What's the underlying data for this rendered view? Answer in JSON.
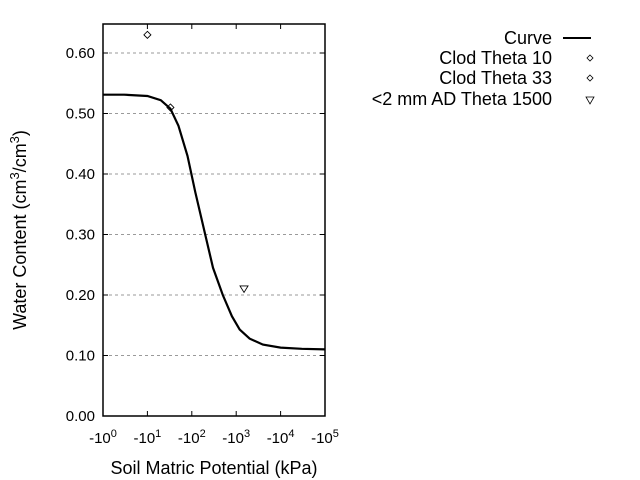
{
  "chart_data": {
    "type": "line",
    "title": "",
    "xlabel": "Soil Matric Potential (kPa)",
    "ylabel": "Water Content (cm3/cm3)",
    "ylabel_parts": {
      "pre": "Water Content (cm",
      "sup1": "3",
      "mid": "/cm",
      "sup2": "3",
      "post": ")"
    },
    "x_scale": "log (negative)",
    "x_ticks": [
      {
        "base": "-10",
        "exp": "0"
      },
      {
        "base": "-10",
        "exp": "1"
      },
      {
        "base": "-10",
        "exp": "2"
      },
      {
        "base": "-10",
        "exp": "3"
      },
      {
        "base": "-10",
        "exp": "4"
      },
      {
        "base": "-10",
        "exp": "5"
      }
    ],
    "xlim": [
      -1,
      -100000
    ],
    "y_ticks": [
      "0.00",
      "0.10",
      "0.20",
      "0.30",
      "0.40",
      "0.50",
      "0.60"
    ],
    "ylim": [
      0.0,
      0.65
    ],
    "grid": {
      "y": true,
      "x": false,
      "style": "dotted"
    },
    "legend_position": "upper right, outside plot",
    "series": [
      {
        "name": "Curve",
        "kind": "line",
        "x": [
          -1,
          -3,
          -10,
          -20,
          -33,
          -50,
          -80,
          -120,
          -200,
          -300,
          -500,
          -800,
          -1200,
          -2000,
          -4000,
          -10000,
          -30000,
          -100000
        ],
        "y": [
          0.531,
          0.531,
          0.529,
          0.522,
          0.508,
          0.48,
          0.43,
          0.37,
          0.3,
          0.245,
          0.2,
          0.165,
          0.143,
          0.128,
          0.118,
          0.113,
          0.111,
          0.11
        ]
      },
      {
        "name": "Clod Theta 10",
        "kind": "scatter",
        "marker": "diamond",
        "x": [
          -10
        ],
        "y": [
          0.63
        ]
      },
      {
        "name": "Clod Theta 33",
        "kind": "scatter",
        "marker": "diamond",
        "x": [
          -33
        ],
        "y": [
          0.51
        ]
      },
      {
        "name": "<2 mm AD Theta 1500",
        "kind": "scatter",
        "marker": "triangle-down",
        "x": [
          -1500
        ],
        "y": [
          0.21
        ]
      }
    ]
  },
  "legend": {
    "items": [
      {
        "label": "Curve",
        "symbol": "line"
      },
      {
        "label": "Clod Theta 10",
        "symbol": "diamond"
      },
      {
        "label": "Clod Theta 33",
        "symbol": "diamond"
      },
      {
        "label": "<2 mm AD Theta 1500",
        "symbol": "triangle-down"
      }
    ]
  },
  "colors": {
    "line": "#000000",
    "grid": "#9a9a9a",
    "background": "#ffffff"
  }
}
